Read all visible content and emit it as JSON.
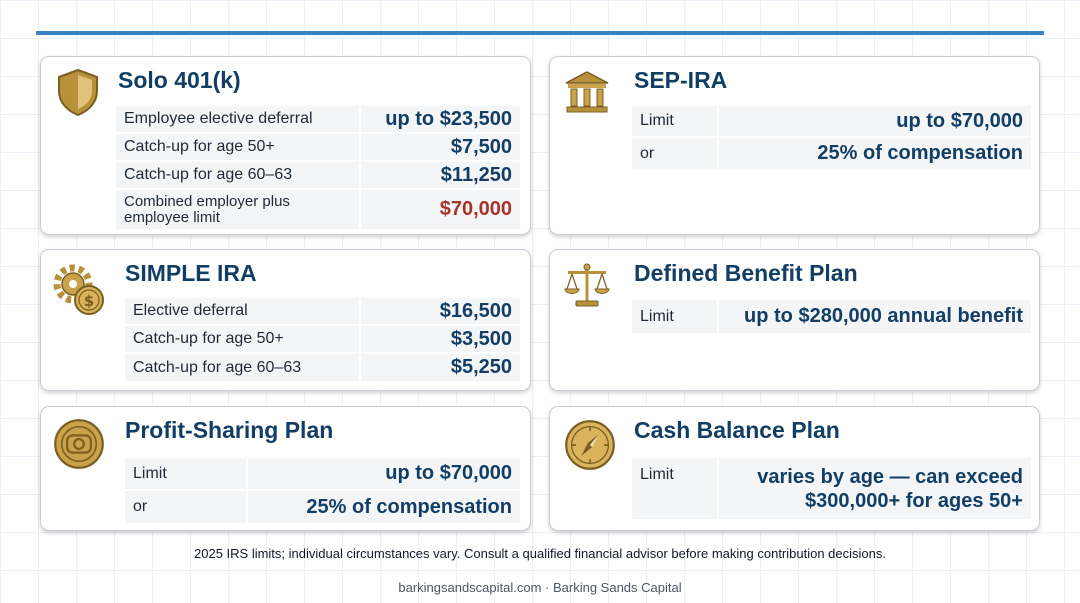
{
  "cards": {
    "solo401k": {
      "icon": "shield-icon",
      "title": "Solo 401(k)",
      "rows": [
        {
          "label": "Employee elective deferral",
          "value": "up to $23,500"
        },
        {
          "label": "Catch-up for age 50+",
          "value": "$7,500"
        },
        {
          "label": "Catch-up for age 60–63",
          "value": "$11,250"
        },
        {
          "label": "Combined employer plus employee limit",
          "value": "$70,000"
        }
      ]
    },
    "sep_ira": {
      "icon": "bank-building-icon",
      "title": "SEP-IRA",
      "rows": [
        {
          "label": "Limit",
          "value": "up to $70,000"
        },
        {
          "label": "or",
          "value": "25% of compensation"
        }
      ]
    },
    "simple_ira": {
      "icon": "gear-dollar-icon",
      "title": "SIMPLE IRA",
      "rows": [
        {
          "label": "Elective deferral",
          "value": "$16,500"
        },
        {
          "label": "Catch-up for age 50+",
          "value": "$3,500"
        },
        {
          "label": "Catch-up for age 60–63",
          "value": "$5,250"
        }
      ]
    },
    "defined_benefit": {
      "icon": "balance-scale-icon",
      "title": "Defined Benefit Plan",
      "rows": [
        {
          "label": "Limit",
          "value": "up to $280,000 annual benefit"
        }
      ]
    },
    "profit_sharing": {
      "icon": "coin-icon",
      "title": "Profit-Sharing Plan",
      "rows": [
        {
          "label": "Limit",
          "value": "up to $70,000"
        },
        {
          "label": "or",
          "value": "25% of compensation"
        }
      ]
    },
    "cash_balance": {
      "icon": "compass-icon",
      "title": "Cash Balance Plan",
      "rows": [
        {
          "label": "Limit",
          "value": "varies by age — can exceed $300,000+ for ages 50+"
        }
      ]
    }
  },
  "footnote": "2025 IRS limits; individual circumstances vary. Consult a qualified financial advisor before making contribution decisions.",
  "footer": "barkingsandscapital.com · Barking Sands Capital",
  "colors": {
    "accent_rule": "#3b82c4",
    "title": "#123e66",
    "value": "#123e66",
    "highlight_value": "#a8332b",
    "icon_gold": "#c9a24a"
  }
}
